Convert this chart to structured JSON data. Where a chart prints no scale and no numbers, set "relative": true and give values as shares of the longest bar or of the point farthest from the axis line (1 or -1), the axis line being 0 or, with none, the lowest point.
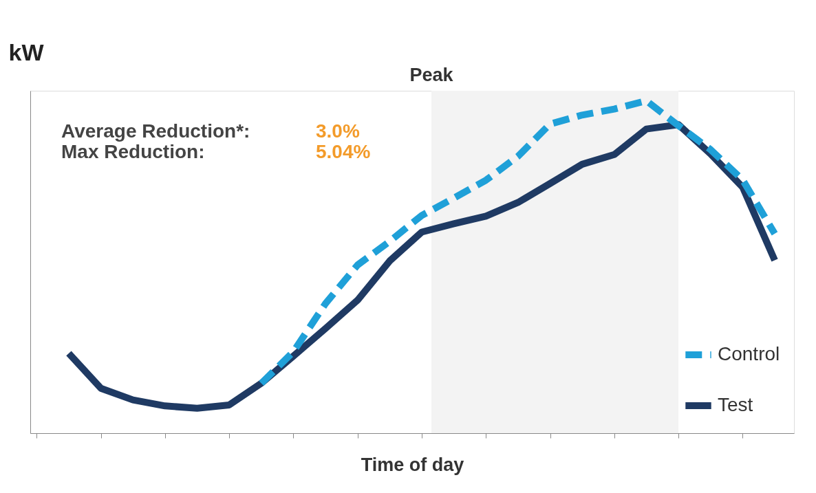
{
  "chart_data": {
    "type": "line",
    "relative": true,
    "ylabel": "kW",
    "xlabel": "Time of day",
    "categories": [
      null,
      null,
      null,
      null,
      null,
      null,
      null,
      null,
      null,
      null,
      null,
      null,
      null,
      null,
      null,
      null,
      null,
      null,
      null,
      null,
      null,
      null,
      null
    ],
    "annotations": [
      "Average Reduction*:",
      "3.0%",
      "Max Reduction:",
      "5.04%",
      "Peak"
    ],
    "grid": false,
    "legend": "bottom right",
    "series": [
      {
        "name": "Control",
        "color": "#1fa0d8",
        "line_style": "dashed",
        "values": [
          null,
          null,
          null,
          null,
          null,
          null,
          0.15,
          0.245,
          0.39,
          0.506,
          0.577,
          0.655,
          0.707,
          0.761,
          0.833,
          0.93,
          0.957,
          0.975,
          1.0,
          0.925,
          0.853,
          0.762,
          0.6
        ]
      },
      {
        "name": "Test",
        "color": "#1f3a63",
        "line_style": "solid",
        "values": [
          0.24,
          0.135,
          0.1,
          0.082,
          0.075,
          0.085,
          0.15,
          0.232,
          0.315,
          0.4,
          0.518,
          0.605,
          0.63,
          0.653,
          0.694,
          0.751,
          0.809,
          0.838,
          0.915,
          0.928,
          0.84,
          0.74,
          0.52
        ]
      }
    ]
  }
}
